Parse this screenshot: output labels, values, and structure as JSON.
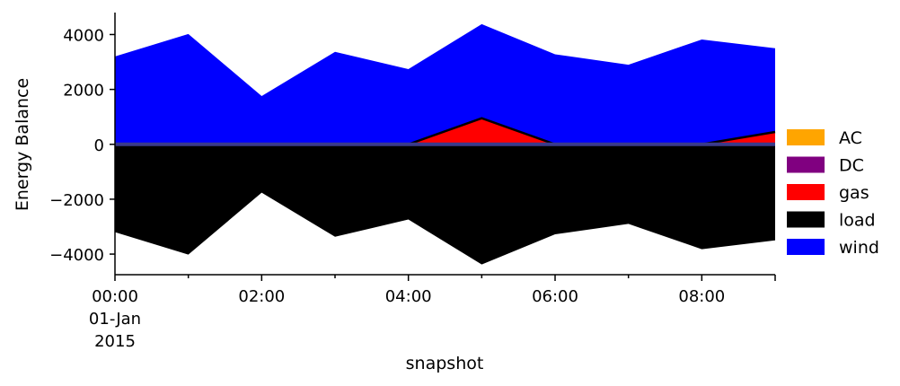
{
  "chart_data": {
    "type": "area",
    "x": [
      "00:00",
      "01:00",
      "02:00",
      "03:00",
      "04:00",
      "05:00",
      "06:00",
      "07:00",
      "08:00",
      "09:00"
    ],
    "x_tick_labels": [
      {
        "x": "00:00",
        "lines": [
          "00:00",
          "01-Jan",
          "2015"
        ]
      },
      {
        "x": "02:00",
        "lines": [
          "02:00"
        ]
      },
      {
        "x": "04:00",
        "lines": [
          "04:00"
        ]
      },
      {
        "x": "06:00",
        "lines": [
          "06:00"
        ]
      },
      {
        "x": "08:00",
        "lines": [
          "08:00"
        ]
      }
    ],
    "xlabel": "snapshot",
    "ylabel": "Energy Balance",
    "ylim": [
      -4750,
      4800
    ],
    "yticks": [
      -4000,
      -2000,
      0,
      2000,
      4000
    ],
    "ytick_labels": [
      "−4000",
      "−2000",
      "0",
      "2000",
      "4000"
    ],
    "series": [
      {
        "name": "AC",
        "color": "#ffa500",
        "values": [
          0,
          0,
          0,
          0,
          0,
          0,
          0,
          0,
          0,
          0
        ]
      },
      {
        "name": "DC",
        "color": "#800080",
        "values": [
          0,
          0,
          0,
          0,
          0,
          0,
          0,
          0,
          0,
          0
        ]
      },
      {
        "name": "gas",
        "color": "#ff0000",
        "values": [
          0,
          0,
          0,
          0,
          0,
          950,
          0,
          0,
          0,
          450
        ]
      },
      {
        "name": "load",
        "color": "#000000",
        "values": [
          -3200,
          -4020,
          -1760,
          -3370,
          -2740,
          -4380,
          -3280,
          -2900,
          -3820,
          -3500
        ]
      },
      {
        "name": "wind",
        "color": "#0000ff",
        "values": [
          3200,
          4020,
          1760,
          3370,
          2740,
          3430,
          3280,
          2900,
          3820,
          3050
        ]
      }
    ],
    "legend_position": "center-right",
    "grid": false
  }
}
